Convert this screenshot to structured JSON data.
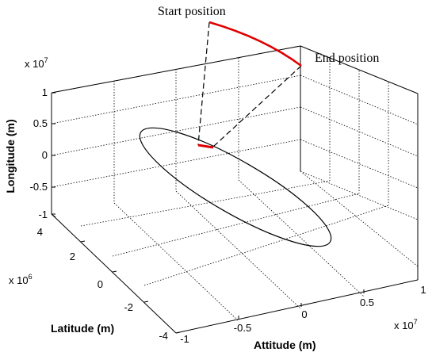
{
  "chart_data": {
    "type": "line",
    "projection": "3d",
    "title": "",
    "axes": {
      "x": {
        "label": "Attitude (m)",
        "exponent_label": {
          "base": "x 10",
          "power": "7"
        },
        "ticks": [
          -1,
          -0.5,
          0,
          0.5,
          1
        ],
        "tick_labels": [
          "-1",
          "-0.5",
          "0",
          "0.5",
          "1"
        ],
        "range": [
          -1,
          1
        ]
      },
      "y": {
        "label": "Latitude (m)",
        "exponent_label": {
          "base": "x 10",
          "power": "6"
        },
        "ticks": [
          -4,
          -2,
          0,
          2,
          4
        ],
        "tick_labels": [
          "-4",
          "-2",
          "0",
          "2",
          "4"
        ],
        "range": [
          -4,
          4
        ]
      },
      "z": {
        "label": "Longitude (m)",
        "exponent_label": {
          "base": "x 10",
          "power": "7"
        },
        "ticks": [
          -1,
          -0.5,
          0,
          0.5,
          1
        ],
        "tick_labels": [
          "-1",
          "-0.5",
          "0",
          "0.5",
          "1"
        ],
        "range": [
          -1,
          1
        ]
      }
    },
    "grid": true,
    "series": [
      {
        "kind": "orbit",
        "color": "#000000",
        "style": "solid"
      },
      {
        "kind": "ground-track",
        "color": "#e00000",
        "style": "solid"
      },
      {
        "kind": "satellite-arc",
        "color": "#e00000",
        "style": "solid"
      },
      {
        "kind": "line-of-sight",
        "color": "#000000",
        "style": "dashed"
      }
    ],
    "annotations": [
      "Start position",
      "End position"
    ]
  }
}
